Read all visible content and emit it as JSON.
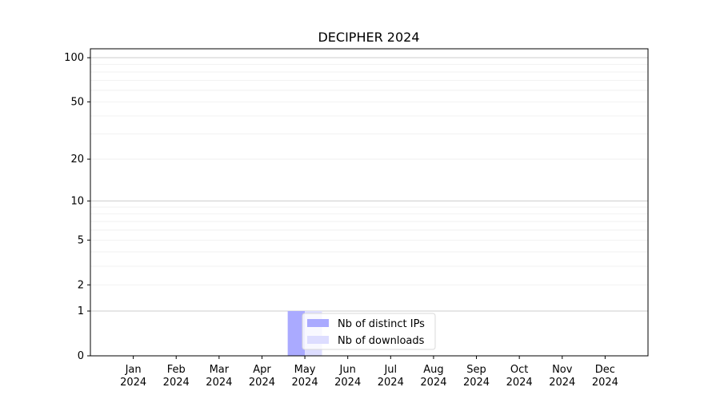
{
  "chart_data": {
    "type": "bar",
    "title": "DECIPHER 2024",
    "xlabel": "",
    "ylabel": "",
    "yscale": "log(1+y)",
    "ylim": [
      0,
      115
    ],
    "yticks": [
      0,
      1,
      2,
      5,
      10,
      20,
      50,
      100
    ],
    "grid": true,
    "legend_position": "bottom-center",
    "categories": [
      "Jan\n2024",
      "Feb\n2024",
      "Mar\n2024",
      "Apr\n2024",
      "May\n2024",
      "Jun\n2024",
      "Jul\n2024",
      "Aug\n2024",
      "Sep\n2024",
      "Oct\n2024",
      "Nov\n2024",
      "Dec\n2024"
    ],
    "series": [
      {
        "name": "Nb of distinct IPs",
        "color": "#aaaaff",
        "values": [
          0,
          0,
          0,
          0,
          1,
          0,
          0,
          0,
          0,
          0,
          0,
          0
        ]
      },
      {
        "name": "Nb of downloads",
        "color": "#ddddff",
        "values": [
          0,
          0,
          0,
          0,
          1,
          0,
          0,
          0,
          0,
          0,
          0,
          0
        ]
      }
    ]
  }
}
